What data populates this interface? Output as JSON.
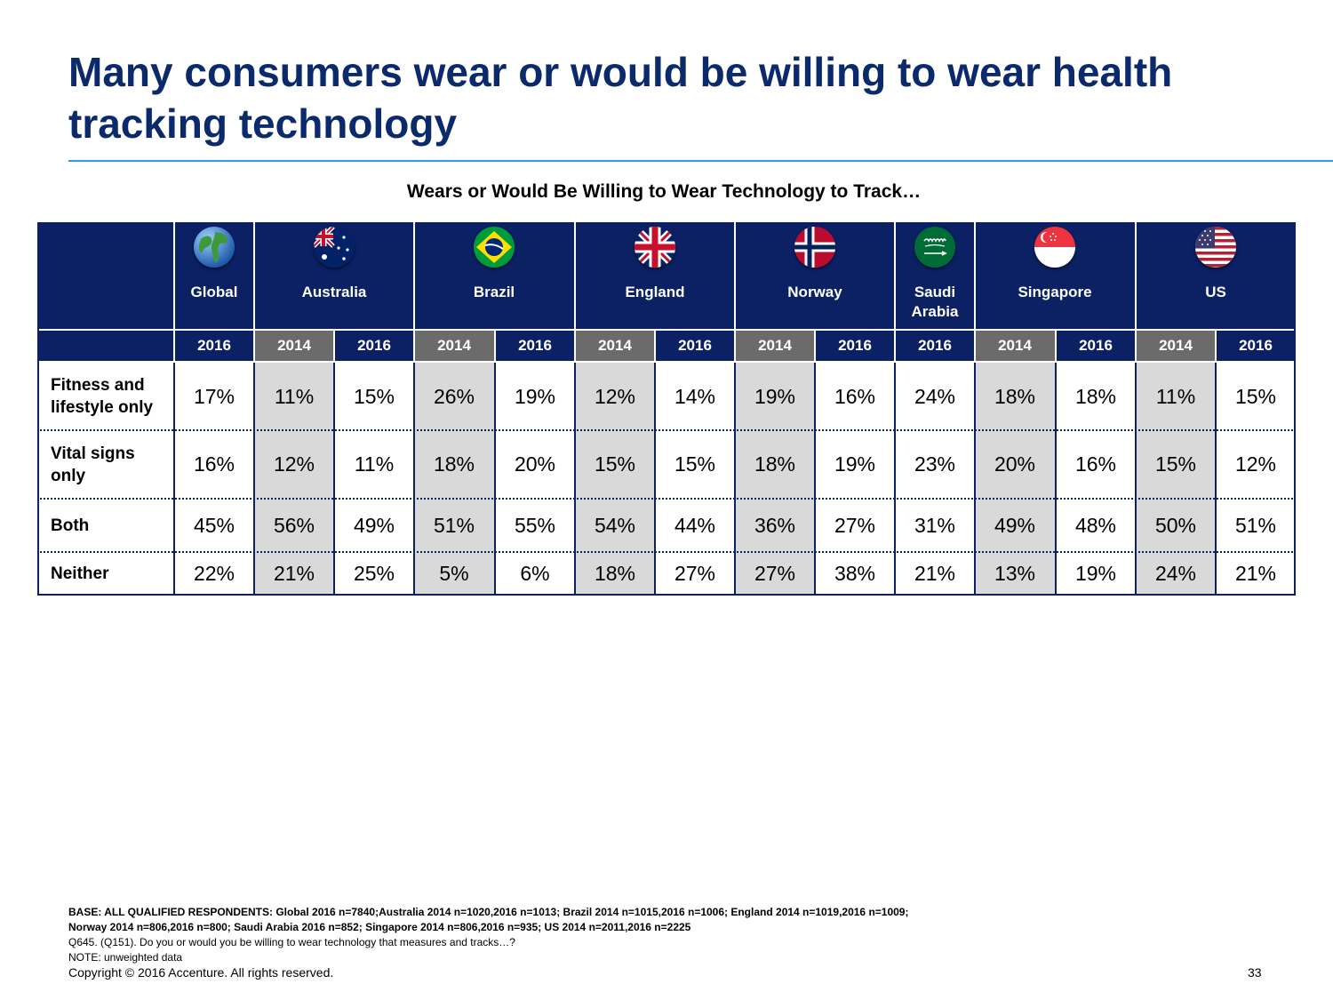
{
  "slide": {
    "title": "Many consumers wear or would be willing to wear health tracking technology",
    "subtitle": "Wears or Would Be Willing to Wear Technology to Track…"
  },
  "table": {
    "countries": [
      {
        "name": "Global",
        "flag": "globe-icon",
        "years": [
          "2016"
        ]
      },
      {
        "name": "Australia",
        "flag": "australia-flag-icon",
        "years": [
          "2014",
          "2016"
        ]
      },
      {
        "name": "Brazil",
        "flag": "brazil-flag-icon",
        "years": [
          "2014",
          "2016"
        ]
      },
      {
        "name": "England",
        "flag": "uk-flag-icon",
        "years": [
          "2014",
          "2016"
        ]
      },
      {
        "name": "Norway",
        "flag": "norway-flag-icon",
        "years": [
          "2014",
          "2016"
        ]
      },
      {
        "name": "Saudi Arabia",
        "flag": "saudi-arabia-flag-icon",
        "years": [
          "2016"
        ]
      },
      {
        "name": "Singapore",
        "flag": "singapore-flag-icon",
        "years": [
          "2014",
          "2016"
        ]
      },
      {
        "name": "US",
        "flag": "us-flag-icon",
        "years": [
          "2014",
          "2016"
        ]
      }
    ],
    "rows": [
      {
        "label": "Fitness and lifestyle only",
        "values": [
          "17%",
          "11%",
          "15%",
          "26%",
          "19%",
          "12%",
          "14%",
          "19%",
          "16%",
          "24%",
          "18%",
          "18%",
          "11%",
          "15%"
        ]
      },
      {
        "label": "Vital signs only",
        "values": [
          "16%",
          "12%",
          "11%",
          "18%",
          "20%",
          "15%",
          "15%",
          "18%",
          "19%",
          "23%",
          "20%",
          "16%",
          "15%",
          "12%"
        ]
      },
      {
        "label": "Both",
        "values": [
          "45%",
          "56%",
          "49%",
          "51%",
          "55%",
          "54%",
          "44%",
          "36%",
          "27%",
          "31%",
          "49%",
          "48%",
          "50%",
          "51%"
        ]
      },
      {
        "label": "Neither",
        "values": [
          "22%",
          "21%",
          "25%",
          "5%",
          "6%",
          "18%",
          "27%",
          "27%",
          "38%",
          "21%",
          "13%",
          "19%",
          "24%",
          "21%"
        ]
      }
    ],
    "colors": {
      "header_navy": "#0b2163",
      "year_2014_gray": "#6b6b6b",
      "shaded_2014": "#d9d9d9",
      "title_blue": "#0b2a6b",
      "rule_blue": "#2ea0d6"
    }
  },
  "footer": {
    "base_line1": "BASE: ALL QUALIFIED RESPONDENTS: Global 2016 n=7840;Australia  2014 n=1020,2016 n=1013; Brazil  2014 n=1015,2016 n=1006; England  2014 n=1019,2016 n=1009;",
    "base_line2": "Norway  2014 n=806,2016 n=800; Saudi Arabia 2016 n=852; Singapore  2014 n=806,2016 n=935; US  2014 n=2011,2016 n=2225",
    "question": "Q645. (Q151).    Do you or would you be willing to wear technology that measures and tracks…?",
    "note": "NOTE: unweighted data",
    "copyright": "Copyright © 2016 Accenture. All rights reserved.",
    "page_number": "33"
  }
}
